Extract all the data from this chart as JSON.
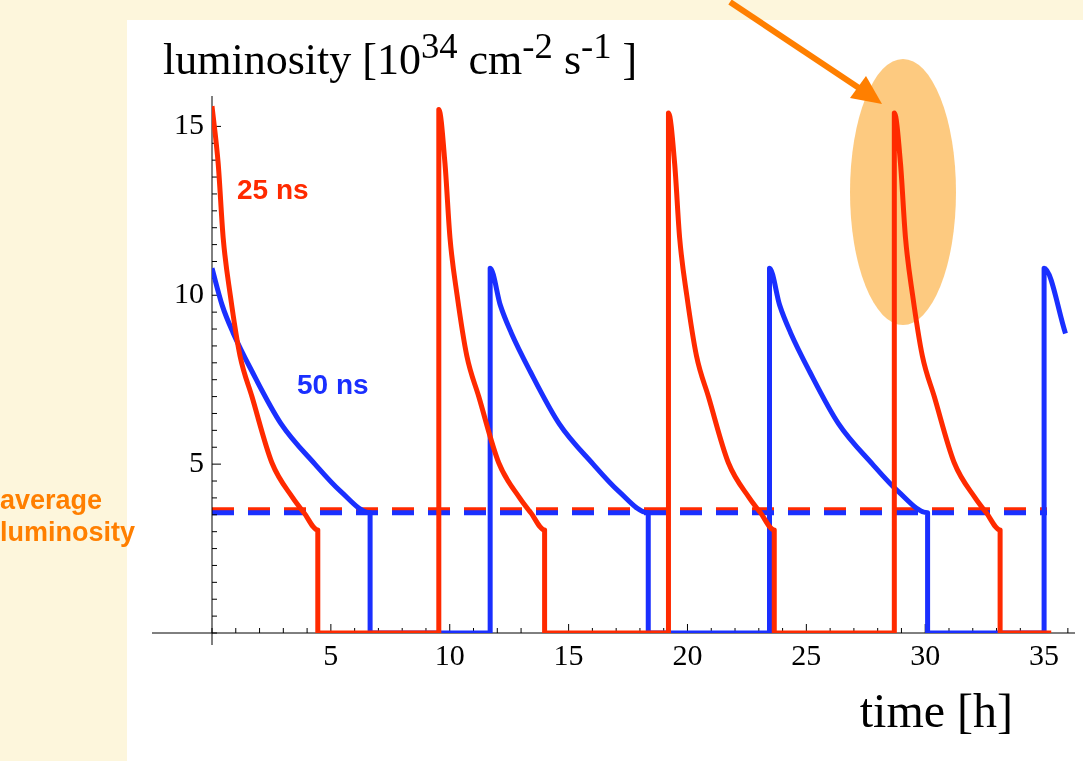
{
  "chart_data": {
    "type": "line",
    "ylabel": "luminosity [10$^{34}$ cm$^{-2}$ s$^{-1}$ ]",
    "xlabel": "time [h]",
    "xlim": [
      0,
      36.3
    ],
    "ylim": [
      0,
      15.9
    ],
    "xticks": [
      {
        "value": 0,
        "label": null
      },
      {
        "value": 1,
        "label": null
      },
      {
        "value": 2,
        "label": null
      },
      {
        "value": 3,
        "label": null
      },
      {
        "value": 4,
        "label": null
      },
      5,
      {
        "value": 6,
        "label": null
      },
      {
        "value": 7,
        "label": null
      },
      {
        "value": 8,
        "label": null
      },
      {
        "value": 9,
        "label": null
      },
      10,
      {
        "value": 11,
        "label": null
      },
      {
        "value": 12,
        "label": null
      },
      {
        "value": 13,
        "label": null
      },
      {
        "value": 14,
        "label": null
      },
      15,
      {
        "value": 16,
        "label": null
      },
      {
        "value": 17,
        "label": null
      },
      {
        "value": 18,
        "label": null
      },
      {
        "value": 19,
        "label": null
      },
      20,
      {
        "value": 21,
        "label": null
      },
      {
        "value": 22,
        "label": null
      },
      {
        "value": 23,
        "label": null
      },
      {
        "value": 24,
        "label": null
      },
      25,
      {
        "value": 26,
        "label": null
      },
      {
        "value": 27,
        "label": null
      },
      {
        "value": 28,
        "label": null
      },
      {
        "value": 29,
        "label": null
      },
      30,
      {
        "value": 31,
        "label": null
      },
      {
        "value": 32,
        "label": null
      },
      {
        "value": 33,
        "label": null
      },
      {
        "value": 34,
        "label": null
      },
      35,
      {
        "value": 36,
        "label": null
      }
    ],
    "yticks": [
      {
        "value": 0,
        "label": null
      },
      {
        "value": 0.5,
        "label": null
      },
      {
        "value": 1,
        "label": null
      },
      {
        "value": 1.5,
        "label": null
      },
      {
        "value": 2,
        "label": null
      },
      {
        "value": 2.5,
        "label": null
      },
      {
        "value": 3,
        "label": null
      },
      {
        "value": 3.5,
        "label": null
      },
      {
        "value": 4,
        "label": null
      },
      {
        "value": 4.5,
        "label": null
      },
      5,
      {
        "value": 5.5,
        "label": null
      },
      {
        "value": 6,
        "label": null
      },
      {
        "value": 6.5,
        "label": null
      },
      {
        "value": 7,
        "label": null
      },
      {
        "value": 7.5,
        "label": null
      },
      {
        "value": 8,
        "label": null
      },
      {
        "value": 8.5,
        "label": null
      },
      {
        "value": 9,
        "label": null
      },
      {
        "value": 9.5,
        "label": null
      },
      10,
      {
        "value": 10.5,
        "label": null
      },
      {
        "value": 11,
        "label": null
      },
      {
        "value": 11.5,
        "label": null
      },
      {
        "value": 12,
        "label": null
      },
      {
        "value": 12.5,
        "label": null
      },
      {
        "value": 13,
        "label": null
      },
      {
        "value": 13.5,
        "label": null
      },
      {
        "value": 14,
        "label": null
      },
      {
        "value": 14.5,
        "label": null
      },
      15
    ],
    "grid": false,
    "legend": false,
    "marker": "none",
    "line_style": "solid",
    "series": [
      {
        "name": "25 ns",
        "color": "#ff2a00",
        "x": [
          0,
          0.26,
          0.47,
          0.77,
          1.18,
          1.68,
          2.52,
          3.4,
          3.87,
          4.45,
          4.45,
          9.54,
          9.54,
          9.8,
          10.01,
          10.31,
          10.72,
          11.22,
          12.06,
          12.94,
          13.41,
          13.99,
          13.99,
          19.2,
          19.2,
          19.46,
          19.67,
          19.97,
          20.38,
          20.88,
          21.72,
          22.6,
          23.07,
          23.65,
          23.65,
          28.7,
          28.7,
          28.96,
          29.17,
          29.47,
          29.88,
          30.38,
          31.22,
          32.1,
          32.57,
          33.15,
          33.15,
          35.3
        ],
        "values": [
          15.6,
          13.9,
          11.7,
          10,
          8.2,
          7.0,
          5.04,
          4.0,
          3.56,
          3.05,
          0,
          0,
          15.5,
          13.9,
          11.7,
          10,
          8.2,
          7.0,
          5.04,
          4.0,
          3.56,
          3.05,
          0,
          0,
          15.4,
          13.9,
          11.7,
          10,
          8.2,
          7.0,
          5.04,
          4.0,
          3.56,
          3.05,
          0,
          0,
          15.4,
          13.9,
          11.7,
          10,
          8.2,
          7.0,
          5.04,
          4.0,
          3.56,
          3.05,
          0,
          0
        ]
      },
      {
        "name": "50 ns",
        "color": "#1a2fff",
        "x": [
          0,
          0.43,
          0.88,
          1.68,
          2.9,
          4.33,
          5.4,
          6.65,
          6.65,
          11.7,
          11.7,
          12.13,
          12.58,
          13.38,
          14.6,
          16.03,
          17.1,
          18.35,
          18.35,
          23.45,
          23.45,
          23.88,
          24.33,
          25.13,
          26.35,
          27.78,
          28.85,
          30.1,
          30.1,
          35.0,
          35.0,
          35.9
        ],
        "values": [
          10.8,
          9.7,
          8.9,
          7.75,
          6.2,
          5.0,
          4.2,
          3.56,
          0,
          0,
          10.8,
          9.7,
          8.9,
          7.75,
          6.2,
          5.0,
          4.2,
          3.56,
          0,
          0,
          10.8,
          9.7,
          8.9,
          7.75,
          6.2,
          5.0,
          4.2,
          3.56,
          0,
          0,
          10.8,
          8.87
        ]
      }
    ],
    "ref_lines": [
      {
        "axis": "y",
        "value": 3.65,
        "color": "#ff2a00",
        "line_style": "dashed"
      },
      {
        "axis": "y",
        "value": 3.56,
        "color": "#1a2fff",
        "line_style": "dashed"
      }
    ],
    "annotations": [
      "average luminosity"
    ]
  }
}
